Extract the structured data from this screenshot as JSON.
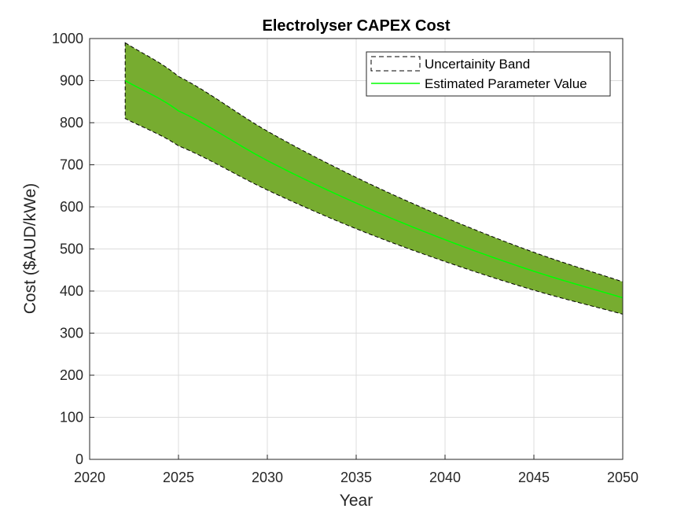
{
  "chart_data": {
    "type": "area",
    "title": "Electrolyser CAPEX Cost",
    "xlabel": "Year",
    "ylabel": "Cost ($AUD/kWe)",
    "xlim": [
      2020,
      2050
    ],
    "ylim": [
      0,
      1000
    ],
    "xticks": [
      2020,
      2025,
      2030,
      2035,
      2040,
      2045,
      2050
    ],
    "yticks": [
      0,
      100,
      200,
      300,
      400,
      500,
      600,
      700,
      800,
      900,
      1000
    ],
    "grid": true,
    "legend_position": "top-right",
    "x": [
      2022,
      2025,
      2030,
      2035,
      2040,
      2045,
      2050
    ],
    "series": [
      {
        "name": "Uncertainity Band",
        "kind": "band",
        "color": "#77ac30",
        "lower": [
          810,
          745,
          640,
          548,
          470,
          402,
          345
        ],
        "upper": [
          990,
          910,
          780,
          670,
          575,
          492,
          422
        ]
      },
      {
        "name": "Estimated Parameter Value",
        "kind": "line",
        "color": "#00ff00",
        "values": [
          900,
          828,
          710,
          609,
          522,
          447,
          384
        ]
      }
    ]
  }
}
